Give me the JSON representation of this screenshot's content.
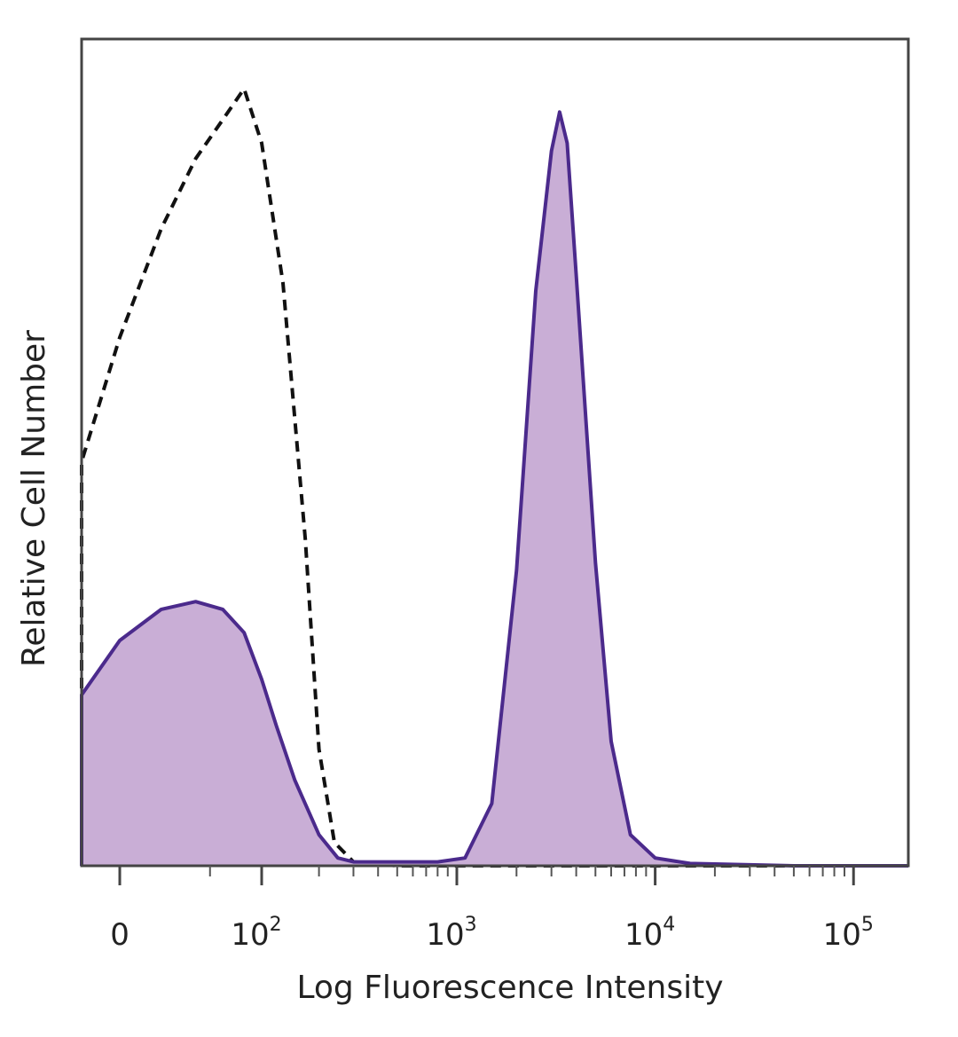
{
  "chart_data": {
    "type": "area",
    "xlabel": "Log Fluorescence Intensity",
    "ylabel": "Relative Cell Number",
    "x_scale": "biexponential",
    "ylim": [
      0,
      100
    ],
    "grid": false,
    "legend": "none",
    "ticks": [
      {
        "value": 0,
        "label": "0",
        "exp": ""
      },
      {
        "value": 100,
        "label": "10",
        "exp": "2"
      },
      {
        "value": 1000,
        "label": "10",
        "exp": "3"
      },
      {
        "value": 10000,
        "label": "10",
        "exp": "4"
      },
      {
        "value": 100000,
        "label": "10",
        "exp": "5"
      }
    ],
    "series": [
      {
        "style": "dashed",
        "color": "#111111",
        "fill": "none",
        "x": [
          -300,
          -200,
          -140,
          -100,
          -60,
          -20,
          0,
          20,
          40,
          60,
          80,
          100,
          130,
          170,
          200,
          240,
          300,
          500,
          1000,
          3000,
          10000,
          50000,
          250000
        ],
        "y": [
          0,
          1,
          6,
          14,
          30,
          52,
          68,
          82,
          91,
          96,
          100,
          93,
          75,
          42,
          15,
          3,
          0.5,
          0,
          0,
          0,
          0,
          0,
          0
        ]
      },
      {
        "style": "solid",
        "color": "#4b2a8c",
        "fill": "#c9aed6",
        "x": [
          -300,
          -200,
          -140,
          -80,
          -20,
          0,
          20,
          40,
          60,
          80,
          100,
          120,
          150,
          200,
          250,
          300,
          500,
          800,
          1100,
          1500,
          2000,
          2500,
          3000,
          3300,
          3600,
          4000,
          5000,
          6000,
          7500,
          10000,
          15000,
          50000,
          250000
        ],
        "y": [
          0,
          1,
          3,
          9,
          22,
          29,
          33,
          34,
          33,
          30,
          24,
          18,
          11,
          4,
          1,
          0.5,
          0.5,
          0.5,
          1,
          8,
          38,
          74,
          92,
          97,
          93,
          76,
          39,
          16,
          4,
          1,
          0.3,
          0,
          0
        ]
      }
    ]
  }
}
